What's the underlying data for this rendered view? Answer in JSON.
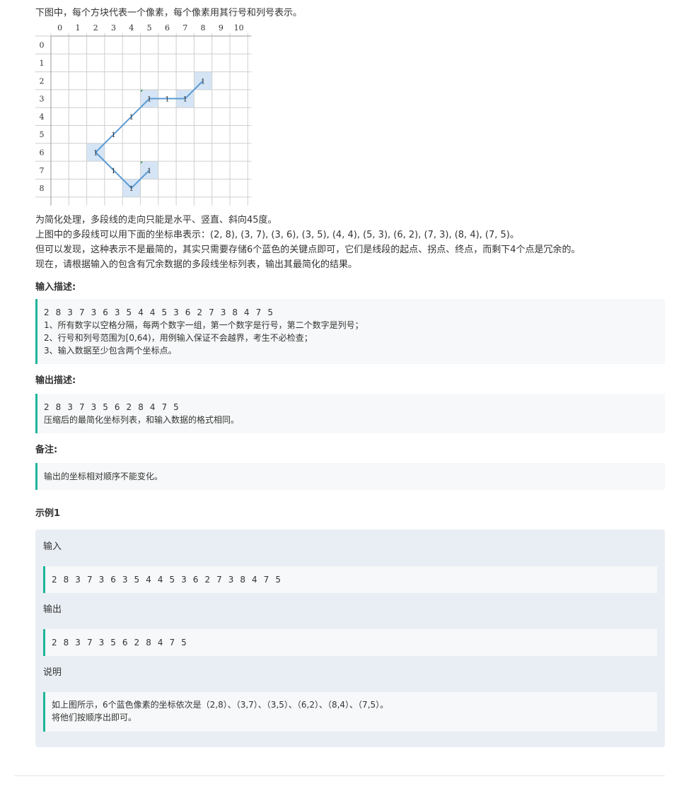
{
  "intro": "下图中，每个方块代表一个像素，每个像素用其行号和列号表示。",
  "grid": {
    "col_labels": [
      "0",
      "1",
      "2",
      "3",
      "4",
      "5",
      "6",
      "7",
      "8",
      "9",
      "10"
    ],
    "row_labels": [
      "0",
      "1",
      "2",
      "3",
      "4",
      "5",
      "6",
      "7",
      "8"
    ],
    "cell_mark": "1",
    "points": [
      [
        2,
        8
      ],
      [
        3,
        7
      ],
      [
        3,
        6
      ],
      [
        3,
        5
      ],
      [
        4,
        4
      ],
      [
        5,
        3
      ],
      [
        6,
        2
      ],
      [
        7,
        3
      ],
      [
        8,
        4
      ],
      [
        7,
        5
      ]
    ],
    "highlighted": [
      [
        2,
        8
      ],
      [
        3,
        7
      ],
      [
        3,
        5
      ],
      [
        6,
        2
      ],
      [
        8,
        4
      ],
      [
        7,
        5
      ]
    ],
    "highlight_color": "#d5e5f5",
    "line_color": "#5b9bd5",
    "corner_mark_color": "#2e8b3a"
  },
  "paragraphs": [
    "为简化处理，多段线的走向只能是水平、竖直、斜向45度。",
    "上图中的多段线可以用下面的坐标串表示：(2, 8), (3, 7), (3, 6), (3, 5), (4, 4), (5, 3), (6, 2), (7, 3), (8, 4), (7, 5)。",
    "但可以发现，这种表示不是最简的，其实只需要存储6个蓝色的关键点即可，它们是线段的起点、拐点、终点，而剩下4个点是冗余的。",
    "现在，请根据输入的包含有冗余数据的多段线坐标列表，输出其最简化的结果。"
  ],
  "input_desc": {
    "title": "输入描述:",
    "lines": [
      "2 8 3 7 3 6 3 5 4 4 5 3 6 2 7 3 8 4 7 5",
      "1、所有数字以空格分隔，每两个数字一组，第一个数字是行号，第二个数字是列号；",
      "2、行号和列号范围为[0,64)，用例输入保证不会越界，考生不必检查；",
      "3、输入数据至少包含两个坐标点。"
    ]
  },
  "output_desc": {
    "title": "输出描述:",
    "lines": [
      "2 8 3 7 3 5 6 2 8 4 7 5",
      "压缩后的最简化坐标列表，和输入数据的格式相同。"
    ]
  },
  "note": {
    "title": "备注:",
    "text": "输出的坐标相对顺序不能变化。"
  },
  "example": {
    "title": "示例1",
    "input_label": "输入",
    "input": "2 8 3 7 3 6 3 5 4 4 5 3 6 2 7 3 8 4 7 5",
    "output_label": "输出",
    "output": "2 8 3 7 3 5 6 2 8 4 7 5",
    "explain_label": "说明",
    "explain_lines": [
      "如上图所示，6个蓝色像素的坐标依次是（2,8）、（3,7）、（3,5）、（6,2）、（8,4）、（7,5）。",
      "将他们按顺序出即可。"
    ]
  }
}
